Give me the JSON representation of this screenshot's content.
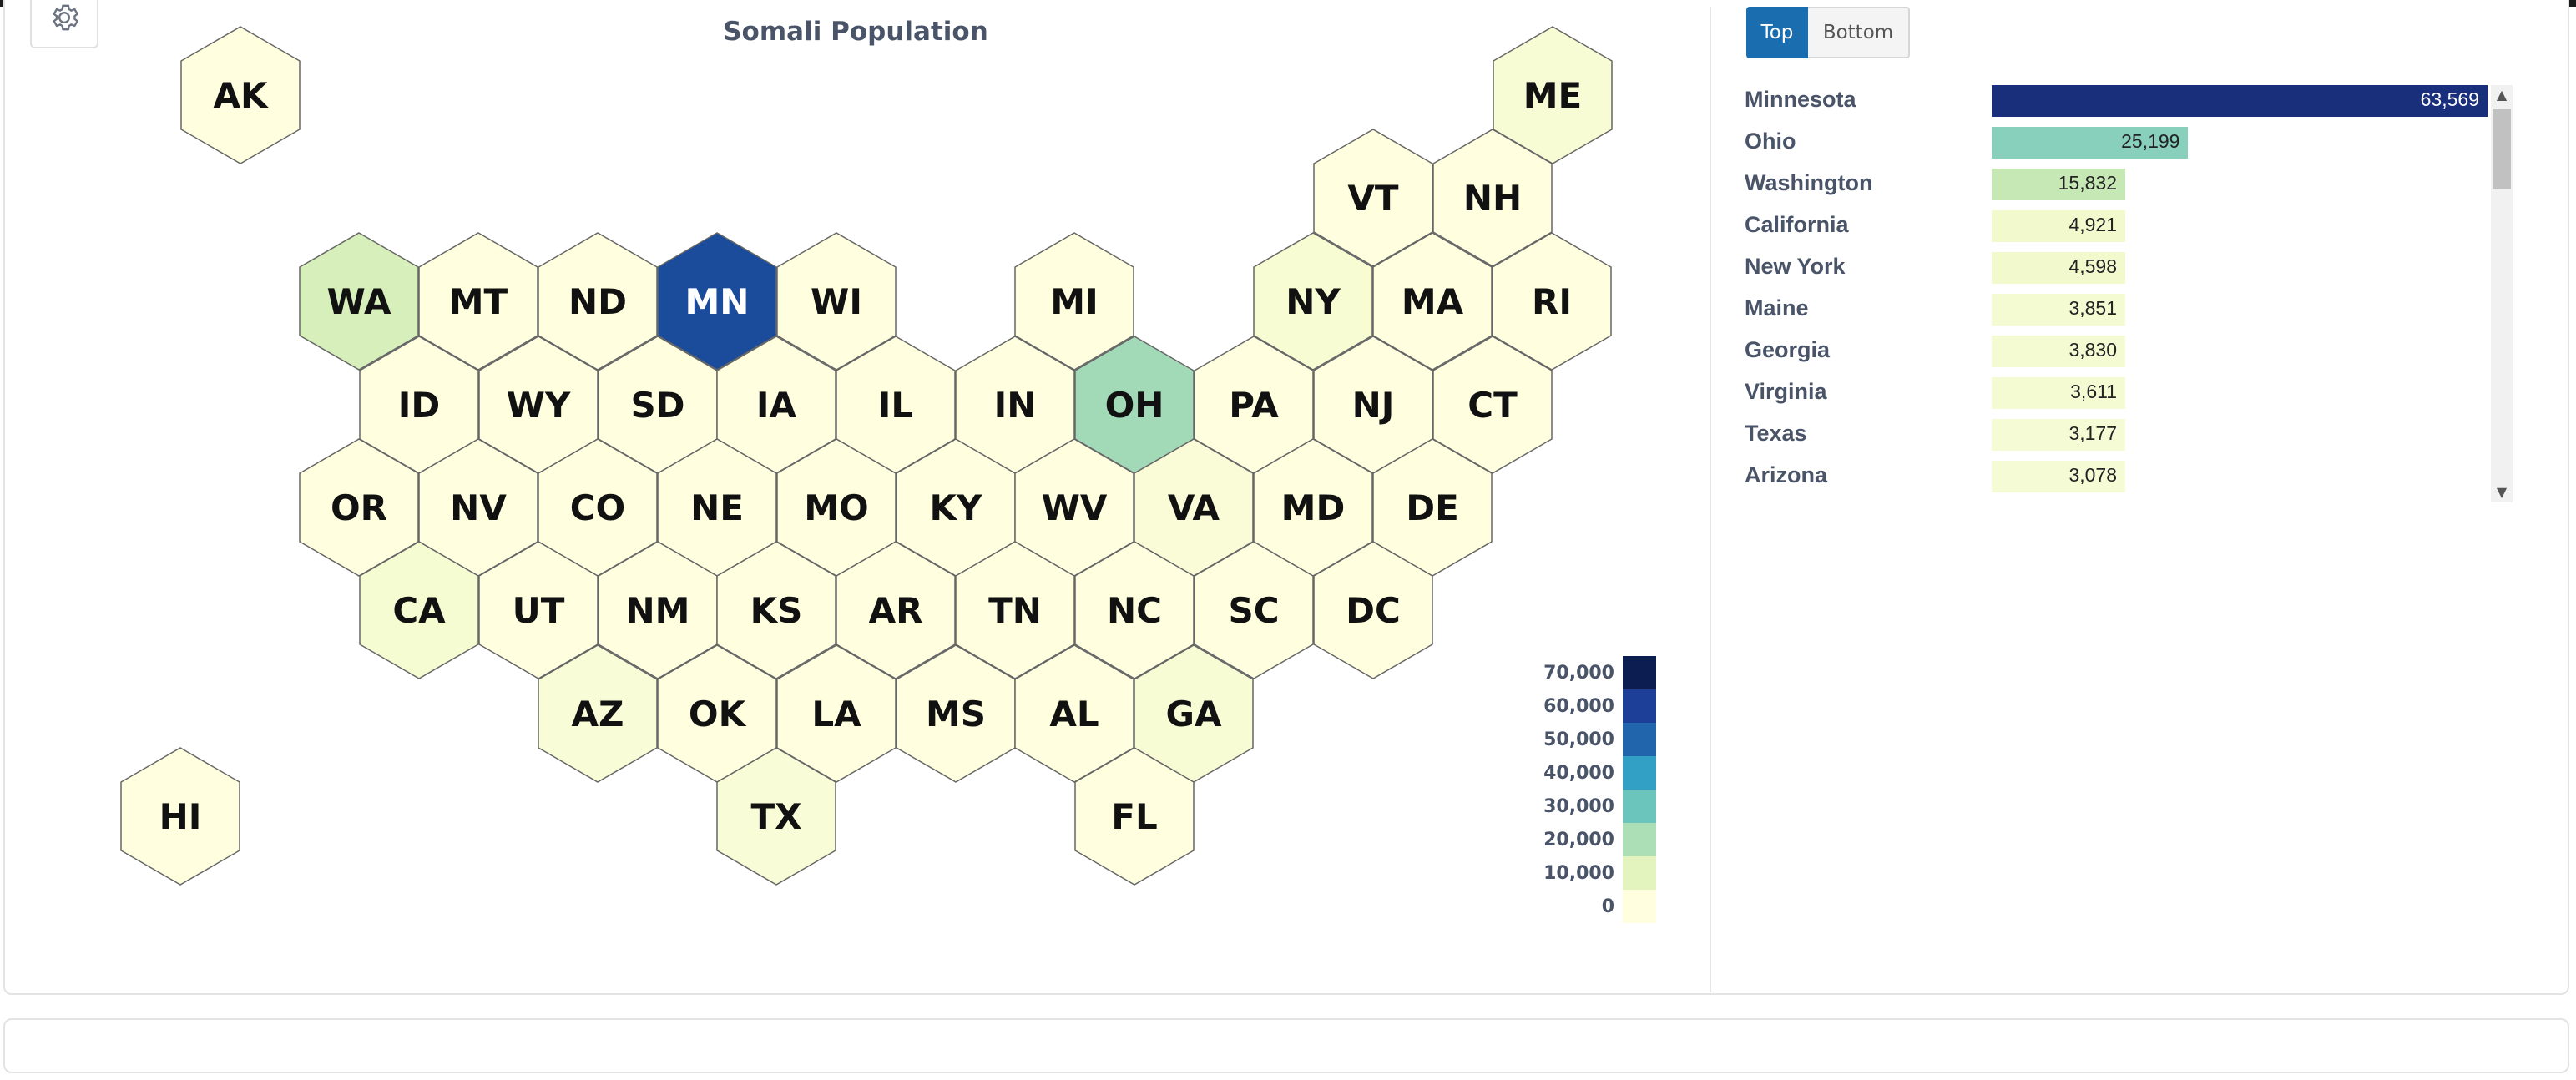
{
  "map": {
    "title": "Somali Population",
    "states": [
      {
        "abbr": "AK",
        "value": 0
      },
      {
        "abbr": "ME",
        "value": 3851
      },
      {
        "abbr": "VT",
        "value": 0
      },
      {
        "abbr": "NH",
        "value": 0
      },
      {
        "abbr": "WA",
        "value": 15832
      },
      {
        "abbr": "MT",
        "value": 0
      },
      {
        "abbr": "ND",
        "value": 0
      },
      {
        "abbr": "MN",
        "value": 63569
      },
      {
        "abbr": "WI",
        "value": 0
      },
      {
        "abbr": "MI",
        "value": 0
      },
      {
        "abbr": "NY",
        "value": 4598
      },
      {
        "abbr": "MA",
        "value": 0
      },
      {
        "abbr": "RI",
        "value": 0
      },
      {
        "abbr": "ID",
        "value": 0
      },
      {
        "abbr": "WY",
        "value": 0
      },
      {
        "abbr": "SD",
        "value": 0
      },
      {
        "abbr": "IA",
        "value": 0
      },
      {
        "abbr": "IL",
        "value": 0
      },
      {
        "abbr": "IN",
        "value": 0
      },
      {
        "abbr": "OH",
        "value": 25199
      },
      {
        "abbr": "PA",
        "value": 0
      },
      {
        "abbr": "NJ",
        "value": 0
      },
      {
        "abbr": "CT",
        "value": 0
      },
      {
        "abbr": "OR",
        "value": 0
      },
      {
        "abbr": "NV",
        "value": 0
      },
      {
        "abbr": "CO",
        "value": 0
      },
      {
        "abbr": "NE",
        "value": 0
      },
      {
        "abbr": "MO",
        "value": 0
      },
      {
        "abbr": "KY",
        "value": 0
      },
      {
        "abbr": "WV",
        "value": 0
      },
      {
        "abbr": "VA",
        "value": 3611
      },
      {
        "abbr": "MD",
        "value": 0
      },
      {
        "abbr": "DE",
        "value": 0
      },
      {
        "abbr": "CA",
        "value": 4921
      },
      {
        "abbr": "UT",
        "value": 0
      },
      {
        "abbr": "NM",
        "value": 0
      },
      {
        "abbr": "KS",
        "value": 0
      },
      {
        "abbr": "AR",
        "value": 0
      },
      {
        "abbr": "TN",
        "value": 0
      },
      {
        "abbr": "NC",
        "value": 0
      },
      {
        "abbr": "SC",
        "value": 0
      },
      {
        "abbr": "DC",
        "value": 0
      },
      {
        "abbr": "AZ",
        "value": 3078
      },
      {
        "abbr": "OK",
        "value": 0
      },
      {
        "abbr": "LA",
        "value": 0
      },
      {
        "abbr": "MS",
        "value": 0
      },
      {
        "abbr": "AL",
        "value": 0
      },
      {
        "abbr": "GA",
        "value": 3830
      },
      {
        "abbr": "HI",
        "value": 0
      },
      {
        "abbr": "TX",
        "value": 3177
      },
      {
        "abbr": "FL",
        "value": 0
      }
    ]
  },
  "legend": [
    {
      "label": "70,000",
      "color": "#0b1d51"
    },
    {
      "label": "60,000",
      "color": "#1e3f97"
    },
    {
      "label": "50,000",
      "color": "#2166ac"
    },
    {
      "label": "40,000",
      "color": "#31a0c4"
    },
    {
      "label": "30,000",
      "color": "#6cc5bd"
    },
    {
      "label": "20,000",
      "color": "#addfb6"
    },
    {
      "label": "10,000",
      "color": "#e3f4bf"
    },
    {
      "label": "0",
      "color": "#ffffe0"
    }
  ],
  "toggle": {
    "top_label": "Top",
    "bottom_label": "Bottom",
    "selected": "Top"
  },
  "ranking": [
    {
      "name": "Minnesota",
      "value": 63569,
      "value_label": "63,569",
      "color": "#1a2f7c"
    },
    {
      "name": "Ohio",
      "value": 25199,
      "value_label": "25,199",
      "color": "#88d0bb"
    },
    {
      "name": "Washington",
      "value": 15832,
      "value_label": "15,832",
      "color": "#c6e8b4"
    },
    {
      "name": "California",
      "value": 4921,
      "value_label": "4,921",
      "color": "#f1f9cd"
    },
    {
      "name": "New York",
      "value": 4598,
      "value_label": "4,598",
      "color": "#f1f9cd"
    },
    {
      "name": "Maine",
      "value": 3851,
      "value_label": "3,851",
      "color": "#f4fbd2"
    },
    {
      "name": "Georgia",
      "value": 3830,
      "value_label": "3,830",
      "color": "#f4fbd2"
    },
    {
      "name": "Virginia",
      "value": 3611,
      "value_label": "3,611",
      "color": "#f4fbd2"
    },
    {
      "name": "Texas",
      "value": 3177,
      "value_label": "3,177",
      "color": "#f5fbd4"
    },
    {
      "name": "Arizona",
      "value": 3078,
      "value_label": "3,078",
      "color": "#f5fbd4"
    }
  ],
  "icons": {
    "settings": "gear-icon",
    "scroll_up": "scroll-up-arrow-icon",
    "scroll_down": "scroll-down-arrow-icon"
  }
}
